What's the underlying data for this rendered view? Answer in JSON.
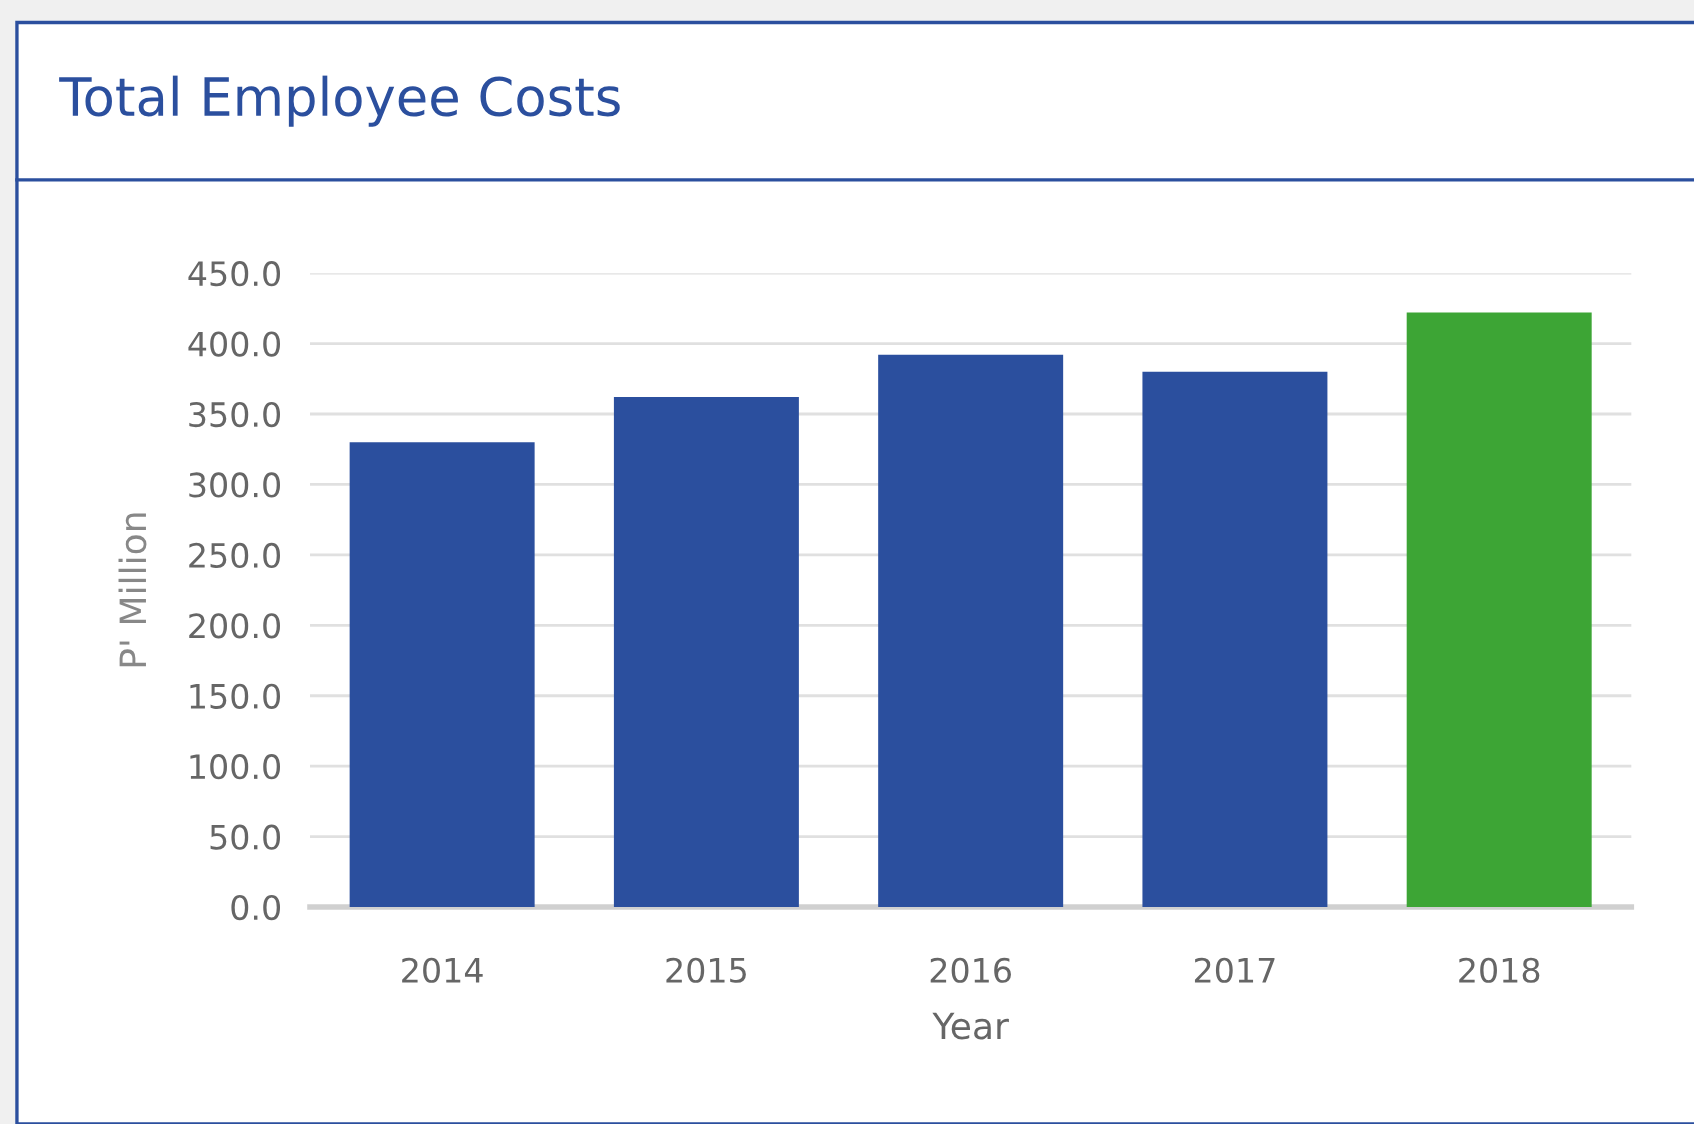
{
  "chart_data": {
    "type": "bar",
    "title": "Total Employee Costs",
    "xlabel": "Year",
    "ylabel": "P' Million",
    "categories": [
      "2014",
      "2015",
      "2016",
      "2017",
      "2018"
    ],
    "values": [
      330,
      362,
      392,
      380,
      422
    ],
    "colors": [
      "#2b4f9e",
      "#2b4f9e",
      "#2b4f9e",
      "#2b4f9e",
      "#3da535"
    ],
    "ylim": [
      0,
      450
    ],
    "yticks": [
      {
        "value": 0,
        "label": "0.0"
      },
      {
        "value": 50,
        "label": "50.0"
      },
      {
        "value": 100,
        "label": "100.0"
      },
      {
        "value": 150,
        "label": "150.0"
      },
      {
        "value": 200,
        "label": "200.0"
      },
      {
        "value": 250,
        "label": "250.0"
      },
      {
        "value": 300,
        "label": "300.0"
      },
      {
        "value": 350,
        "label": "350.0"
      },
      {
        "value": 400,
        "label": "400.0"
      },
      {
        "value": 450,
        "label": "450.0"
      }
    ],
    "grid": "y",
    "legend": false
  }
}
